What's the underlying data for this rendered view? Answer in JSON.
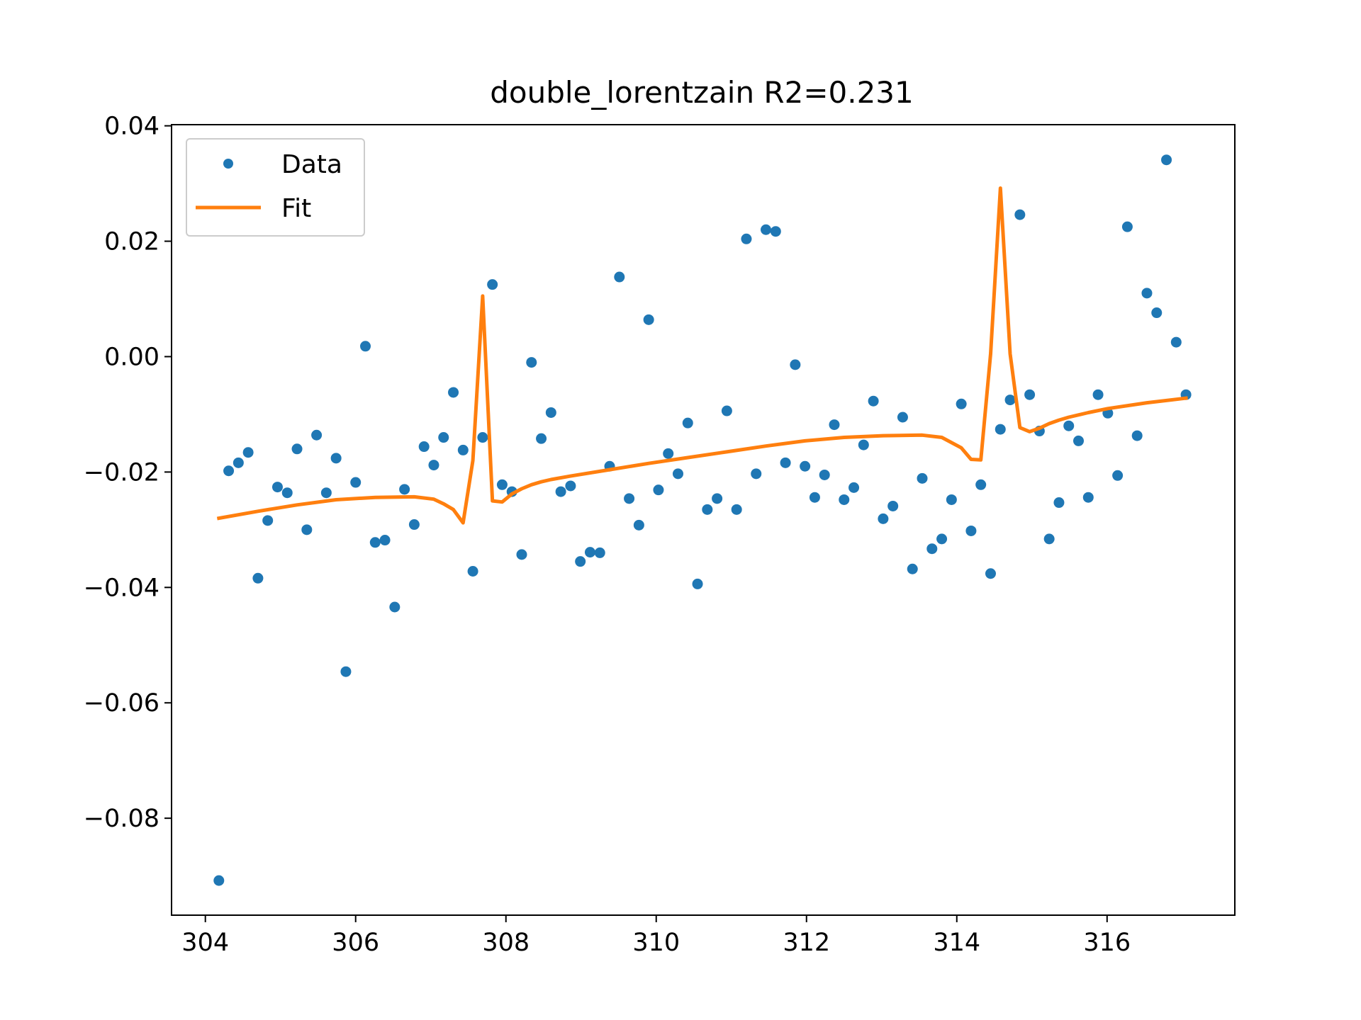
{
  "chart_data": {
    "type": "scatter",
    "title": "double_lorentzain R2=0.231",
    "xlabel": "",
    "ylabel": "",
    "xlim": [
      303.55,
      317.7
    ],
    "ylim": [
      -0.0968,
      0.0402
    ],
    "xticks": [
      304,
      306,
      308,
      310,
      312,
      314,
      316
    ],
    "yticks": [
      0.04,
      0.02,
      0.0,
      -0.02,
      -0.04,
      -0.06,
      -0.08
    ],
    "xtick_labels": [
      "304",
      "306",
      "308",
      "310",
      "312",
      "314",
      "316"
    ],
    "ytick_labels": [
      "0.04",
      "0.02",
      "0.00",
      "−0.02",
      "−0.04",
      "−0.06",
      "−0.08"
    ],
    "grid": false,
    "legend": {
      "placement": "top-left",
      "entries": [
        {
          "name": "Data",
          "style": "marker",
          "color": "#1f77b4"
        },
        {
          "name": "Fit",
          "style": "line",
          "color": "#ff7f0e"
        }
      ]
    },
    "series": [
      {
        "name": "Data",
        "kind": "scatter",
        "color": "#1f77b4",
        "x": [
          304.18,
          304.31,
          304.44,
          304.57,
          304.7,
          304.83,
          304.96,
          305.09,
          305.22,
          305.35,
          305.48,
          305.61,
          305.74,
          305.87,
          306.0,
          306.13,
          306.26,
          306.39,
          306.52,
          306.65,
          306.78,
          306.91,
          307.04,
          307.17,
          307.3,
          307.43,
          307.56,
          307.69,
          307.82,
          307.95,
          308.08,
          308.21,
          308.34,
          308.47,
          308.6,
          308.73,
          308.86,
          308.99,
          309.12,
          309.25,
          309.38,
          309.51,
          309.64,
          309.77,
          309.9,
          310.03,
          310.16,
          310.29,
          310.42,
          310.55,
          310.68,
          310.81,
          310.94,
          311.07,
          311.2,
          311.33,
          311.46,
          311.59,
          311.72,
          311.85,
          311.98,
          312.11,
          312.24,
          312.37,
          312.5,
          312.63,
          312.76,
          312.89,
          313.02,
          313.15,
          313.28,
          313.41,
          313.54,
          313.67,
          313.8,
          313.93,
          314.06,
          314.19,
          314.32,
          314.45,
          314.58,
          314.71,
          314.84,
          314.97,
          315.1,
          315.23,
          315.36,
          315.49,
          315.62,
          315.75,
          315.88,
          316.01,
          316.14,
          316.27,
          316.4,
          316.53,
          316.66,
          316.79,
          316.92,
          317.05
        ],
        "y": [
          -0.0908,
          -0.0198,
          -0.0184,
          -0.0166,
          -0.0384,
          -0.0284,
          -0.0226,
          -0.0236,
          -0.016,
          -0.03,
          -0.0136,
          -0.0236,
          -0.0176,
          -0.0546,
          -0.0218,
          0.0018,
          -0.0322,
          -0.0318,
          -0.0434,
          -0.023,
          -0.0291,
          -0.0156,
          -0.0188,
          -0.014,
          -0.0062,
          -0.0162,
          -0.0372,
          -0.014,
          0.0125,
          -0.0222,
          -0.0234,
          -0.0343,
          -0.001,
          -0.0142,
          -0.0097,
          -0.0234,
          -0.0224,
          -0.0355,
          -0.0339,
          -0.034,
          -0.019,
          0.0138,
          -0.0246,
          -0.0292,
          0.0064,
          -0.0231,
          -0.0168,
          -0.0203,
          -0.0115,
          -0.0394,
          -0.0265,
          -0.0246,
          -0.0094,
          -0.0265,
          0.0204,
          -0.0203,
          0.022,
          0.0217,
          -0.0184,
          -0.0014,
          -0.019,
          -0.0244,
          -0.0205,
          -0.0118,
          -0.0248,
          -0.0227,
          -0.0153,
          -0.0077,
          -0.0281,
          -0.0259,
          -0.0105,
          -0.0368,
          -0.0211,
          -0.0333,
          -0.0316,
          -0.0248,
          -0.0082,
          -0.0302,
          -0.0222,
          -0.0376,
          -0.0126,
          -0.0075,
          0.0246,
          -0.0066,
          -0.0129,
          -0.0316,
          -0.0253,
          -0.012,
          -0.0146,
          -0.0244,
          -0.0066,
          -0.0098,
          -0.0206,
          0.0225,
          -0.0137,
          0.011,
          0.0076,
          0.0341,
          0.0025,
          -0.0066
        ]
      },
      {
        "name": "Fit",
        "kind": "line",
        "color": "#ff7f0e",
        "x": [
          304.18,
          304.7,
          305.22,
          305.74,
          306.26,
          306.78,
          307.04,
          307.17,
          307.3,
          307.43,
          307.56,
          307.69,
          307.82,
          307.95,
          308.08,
          308.21,
          308.34,
          308.47,
          308.6,
          308.86,
          309.38,
          309.9,
          310.42,
          310.94,
          311.46,
          311.98,
          312.5,
          313.02,
          313.54,
          313.8,
          314.06,
          314.19,
          314.32,
          314.45,
          314.58,
          314.71,
          314.84,
          314.97,
          315.1,
          315.23,
          315.36,
          315.49,
          315.75,
          316.01,
          316.53,
          317.05
        ],
        "y": [
          -0.028,
          -0.0268,
          -0.0257,
          -0.0248,
          -0.0244,
          -0.0243,
          -0.0247,
          -0.0255,
          -0.0265,
          -0.0288,
          -0.018,
          0.0105,
          -0.025,
          -0.0252,
          -0.0238,
          -0.0229,
          -0.0222,
          -0.0217,
          -0.0213,
          -0.0207,
          -0.0196,
          -0.0185,
          -0.0175,
          -0.0165,
          -0.0155,
          -0.0146,
          -0.014,
          -0.0137,
          -0.0136,
          -0.014,
          -0.0158,
          -0.0178,
          -0.0179,
          0.0005,
          0.0292,
          0.0005,
          -0.0123,
          -0.013,
          -0.0124,
          -0.0116,
          -0.011,
          -0.0105,
          -0.0097,
          -0.009,
          -0.008,
          -0.0072
        ]
      }
    ]
  }
}
